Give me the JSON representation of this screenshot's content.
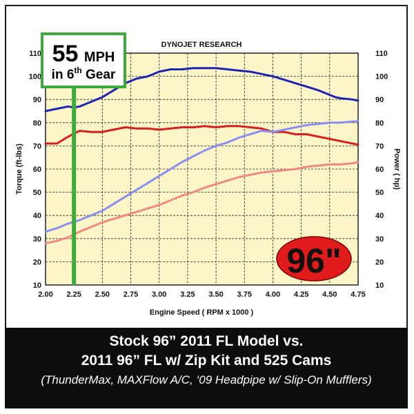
{
  "chart_data": {
    "type": "line",
    "title": "DYNOJET RESEARCH",
    "xlabel": "Engine Speed ( RPM x 1000 )",
    "ylabel_left": "Torque (ft-lbs)",
    "ylabel_right": "Power ( hp)",
    "xlim": [
      2.0,
      4.75
    ],
    "ylim_left": [
      10,
      110
    ],
    "ylim_right": [
      10,
      110
    ],
    "x_ticks": [
      "2.00",
      "2.25",
      "2.50",
      "2.75",
      "3.00",
      "3.25",
      "3.50",
      "3.75",
      "4.00",
      "4.25",
      "4.50",
      "4.75"
    ],
    "y_ticks_left": [
      "10",
      "20",
      "30",
      "40",
      "50",
      "60",
      "70",
      "80",
      "90",
      "100",
      "110"
    ],
    "y_ticks_right": [
      "10",
      "20",
      "30",
      "40",
      "50",
      "60",
      "70",
      "80",
      "90",
      "100",
      "110"
    ],
    "grid": true,
    "plot_background": "#fbf5c8",
    "series": [
      {
        "color": "#1f24b0",
        "axis": "left",
        "x": [
          2.0,
          2.1,
          2.2,
          2.25,
          2.3,
          2.4,
          2.5,
          2.6,
          2.7,
          2.8,
          2.9,
          3.0,
          3.1,
          3.2,
          3.3,
          3.4,
          3.5,
          3.6,
          3.7,
          3.8,
          3.9,
          4.0,
          4.1,
          4.2,
          4.3,
          4.4,
          4.5,
          4.55,
          4.6,
          4.7,
          4.75
        ],
        "y": [
          85,
          86,
          87,
          86.5,
          87,
          89,
          91,
          94,
          97,
          99,
          100,
          102,
          103,
          103,
          103.5,
          103.5,
          103.5,
          103,
          102.5,
          102,
          101,
          100,
          98.5,
          97,
          95.5,
          94,
          92,
          91,
          90.5,
          90,
          89.5
        ]
      },
      {
        "color": "#d81e1e",
        "axis": "left",
        "x": [
          2.0,
          2.1,
          2.2,
          2.3,
          2.4,
          2.5,
          2.6,
          2.7,
          2.8,
          2.9,
          3.0,
          3.1,
          3.2,
          3.3,
          3.4,
          3.5,
          3.6,
          3.7,
          3.8,
          3.9,
          4.0,
          4.1,
          4.2,
          4.3,
          4.4,
          4.5,
          4.6,
          4.7,
          4.75
        ],
        "y": [
          71,
          71,
          74,
          76.5,
          76,
          76,
          77,
          78,
          77.5,
          77.5,
          77,
          77.5,
          78,
          78,
          78.5,
          78,
          78.5,
          78.5,
          78,
          77.5,
          76,
          76,
          75,
          75,
          74,
          73,
          72,
          71,
          70.5
        ]
      },
      {
        "color": "#8a8ef0",
        "axis": "right",
        "x": [
          2.0,
          2.1,
          2.2,
          2.3,
          2.4,
          2.5,
          2.6,
          2.7,
          2.8,
          2.9,
          3.0,
          3.1,
          3.2,
          3.3,
          3.4,
          3.5,
          3.6,
          3.7,
          3.8,
          3.9,
          4.0,
          4.1,
          4.2,
          4.3,
          4.4,
          4.5,
          4.6,
          4.7,
          4.75
        ],
        "y": [
          33,
          34.5,
          36.5,
          38,
          40,
          42,
          45,
          48,
          51,
          54,
          57,
          60,
          63,
          65.5,
          68,
          70,
          71.5,
          73.5,
          75,
          76.5,
          76,
          77,
          78,
          79,
          79.5,
          80,
          80,
          80.5,
          80.5
        ]
      },
      {
        "color": "#ef8a80",
        "axis": "right",
        "x": [
          2.0,
          2.1,
          2.2,
          2.3,
          2.4,
          2.5,
          2.6,
          2.7,
          2.8,
          2.9,
          3.0,
          3.1,
          3.2,
          3.3,
          3.4,
          3.5,
          3.6,
          3.7,
          3.8,
          3.9,
          4.0,
          4.1,
          4.2,
          4.3,
          4.4,
          4.5,
          4.6,
          4.7,
          4.75
        ],
        "y": [
          28,
          29,
          30.5,
          33,
          35,
          37,
          38.5,
          40,
          41.5,
          43,
          44.5,
          46.5,
          48.5,
          50,
          52,
          53.5,
          55,
          56.5,
          57.5,
          58.5,
          59,
          59.5,
          60,
          61,
          61.5,
          62,
          62,
          62.5,
          63
        ]
      }
    ],
    "annotations": {
      "speed_big": "55",
      "speed_unit": "MPH",
      "gear_prefix": "in 6",
      "gear_sup": "th",
      "gear_suffix": " Gear",
      "marker_x": 2.25,
      "badge": "96\""
    }
  },
  "caption": {
    "line1": "Stock 96” 2011 FL Model vs.",
    "line2": "2011 96” FL w/ Zip Kit and 525 Cams",
    "line3": "(ThunderMax, MAXFlow A/C, ‘09 Headpipe w/ Slip-On Mufflers)"
  },
  "colors": {
    "marker": "#3daa3d",
    "badge_fill": "#e01b1b",
    "caption_bg": "#0d0d0d"
  }
}
